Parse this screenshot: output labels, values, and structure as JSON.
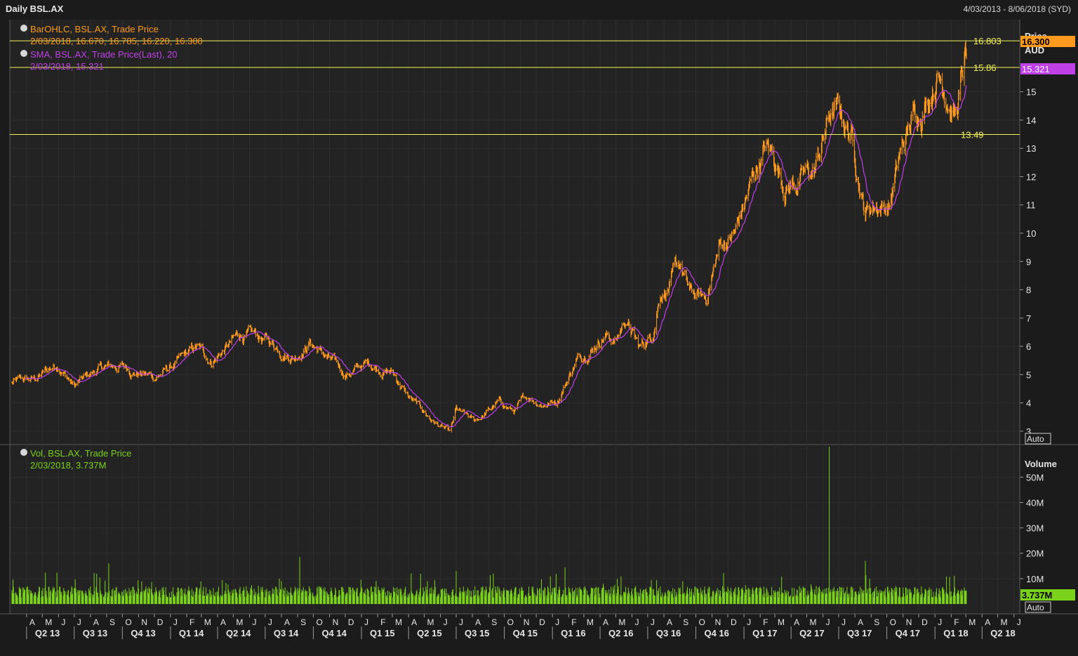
{
  "header": {
    "title": "Daily BSL.AX",
    "date_range": "4/03/2013 - 8/06/2018 (SYD)"
  },
  "colors": {
    "background": "#1b1b1b",
    "price": "#ff9a1f",
    "sma": "#c040e8",
    "volume": "#7ad21a",
    "levels": "#f3f35a",
    "axis_text": "#e6e6e6"
  },
  "legend": {
    "ohlc_label": "BarOHLC, BSL.AX, Trade Price",
    "ohlc_values": "2/03/2018, 16.670, 16.785, 16.220, 16.300",
    "sma_label": "SMA, BSL.AX, Trade Price(Last),  20",
    "sma_values": "2/03/2018, 15.321",
    "vol_label": "Vol, BSL.AX, Trade Price",
    "vol_values": "2/03/2018, 3.737M"
  },
  "price_axis": {
    "title": "Price",
    "unit": "AUD",
    "auto_label": "Auto",
    "ticks": [
      "15",
      "14",
      "13",
      "12",
      "11",
      "10",
      "9",
      "8",
      "7",
      "6",
      "5",
      "4",
      "3"
    ]
  },
  "volume_axis": {
    "title": "Volume",
    "auto_label": "Auto",
    "ticks": [
      "50M",
      "40M",
      "30M",
      "20M",
      "10M"
    ]
  },
  "badges": {
    "last_price": "16.300",
    "last_sma": "15.321",
    "last_volume": "3.737M"
  },
  "levels": [
    {
      "label": "16.803",
      "value": 16.803
    },
    {
      "label": "15.86",
      "value": 15.86
    },
    {
      "label": "13.49",
      "value": 13.49
    }
  ],
  "x_axis": {
    "months": [
      "A",
      "M",
      "J",
      "J",
      "A",
      "S",
      "O",
      "N",
      "D",
      "J",
      "F",
      "M",
      "A",
      "M",
      "J",
      "J",
      "A",
      "S",
      "O",
      "N",
      "D",
      "J",
      "F",
      "M",
      "A",
      "M",
      "J",
      "J",
      "A",
      "S",
      "O",
      "N",
      "D",
      "J",
      "F",
      "M",
      "A",
      "M",
      "J",
      "J",
      "A",
      "S",
      "O",
      "N",
      "D",
      "J",
      "F",
      "M",
      "A",
      "M",
      "J",
      "J",
      "A",
      "S",
      "O",
      "N",
      "D",
      "J",
      "F",
      "M",
      "A",
      "M",
      "J"
    ],
    "quarters": [
      "Q2 13",
      "Q3 13",
      "Q4 13",
      "Q1 14",
      "Q2 14",
      "Q3 14",
      "Q4 14",
      "Q1 15",
      "Q2 15",
      "Q3 15",
      "Q4 15",
      "Q1 16",
      "Q2 16",
      "Q3 16",
      "Q4 16",
      "Q1 17",
      "Q2 17",
      "Q3 17",
      "Q4 17",
      "Q1 18",
      "Q2 18"
    ]
  },
  "chart_data": {
    "type": "line",
    "series": [
      {
        "name": "BarOHLC, BSL.AX, Trade Price",
        "x": [
          "2013-03-04",
          "2013-04-15",
          "2013-06-01",
          "2013-07-01",
          "2013-08-20",
          "2013-10-01",
          "2013-12-01",
          "2014-01-15",
          "2014-02-20",
          "2014-03-20",
          "2014-05-15",
          "2014-07-01",
          "2014-08-25",
          "2014-09-25",
          "2014-11-01",
          "2014-12-01",
          "2015-01-15",
          "2015-03-01",
          "2015-04-01",
          "2015-05-15",
          "2015-06-20",
          "2015-07-01",
          "2015-08-05",
          "2015-09-20",
          "2015-10-20",
          "2015-11-15",
          "2015-12-15",
          "2016-01-10",
          "2016-02-15",
          "2016-03-15",
          "2016-04-10",
          "2016-05-01",
          "2016-05-20",
          "2016-06-15",
          "2016-07-10",
          "2016-07-25",
          "2016-08-10",
          "2016-09-01",
          "2016-09-20",
          "2016-10-20",
          "2016-11-15",
          "2016-12-15",
          "2017-01-20",
          "2017-02-10",
          "2017-02-25",
          "2017-03-20",
          "2017-04-15",
          "2017-05-15",
          "2017-06-15",
          "2017-07-01",
          "2017-07-25",
          "2017-08-10",
          "2017-08-20",
          "2017-09-10",
          "2017-10-05",
          "2017-10-25",
          "2017-11-20",
          "2017-12-15",
          "2018-01-05",
          "2018-01-25",
          "2018-02-10",
          "2018-02-20",
          "2018-03-02"
        ],
        "values": [
          4.7,
          4.8,
          5.4,
          4.6,
          5.2,
          5.3,
          4.9,
          5.4,
          5.9,
          5.5,
          6.4,
          6.2,
          5.7,
          6.2,
          5.5,
          5.0,
          5.4,
          5.1,
          4.2,
          3.4,
          2.9,
          3.7,
          3.3,
          4.0,
          3.7,
          4.2,
          4.0,
          4.1,
          5.5,
          6.0,
          6.5,
          6.2,
          7.0,
          5.9,
          6.4,
          8.0,
          8.2,
          8.8,
          7.8,
          7.6,
          9.5,
          10.0,
          12.0,
          13.0,
          12.7,
          11.8,
          11.9,
          12.1,
          14.2,
          14.2,
          13.5,
          12.0,
          10.9,
          11.1,
          11.0,
          12.6,
          14.0,
          14.8,
          15.8,
          15.2,
          14.3,
          15.3,
          16.3
        ],
        "last_ohlc": {
          "open": 16.67,
          "high": 16.785,
          "low": 16.22,
          "close": 16.3
        }
      },
      {
        "name": "SMA, BSL.AX, Trade Price(Last),  20",
        "period": 20,
        "last": 15.321
      },
      {
        "name": "Vol, BSL.AX, Trade Price",
        "unit": "M",
        "baseline": 5,
        "spikes": [
          {
            "x": "2013-09-05",
            "value": 16
          },
          {
            "x": "2014-09-05",
            "value": 18.5
          },
          {
            "x": "2015-07-01",
            "value": 13
          },
          {
            "x": "2016-01-25",
            "value": 14.5
          },
          {
            "x": "2017-06-13",
            "value": 62
          },
          {
            "x": "2017-08-21",
            "value": 17
          }
        ],
        "last": 3.737
      }
    ],
    "price_axis_ylim": [
      2.6,
      17.5
    ],
    "volume_axis_ylim": [
      0,
      62
    ],
    "xlim": [
      "2013-03-04",
      "2018-06-08"
    ],
    "grid": true
  }
}
